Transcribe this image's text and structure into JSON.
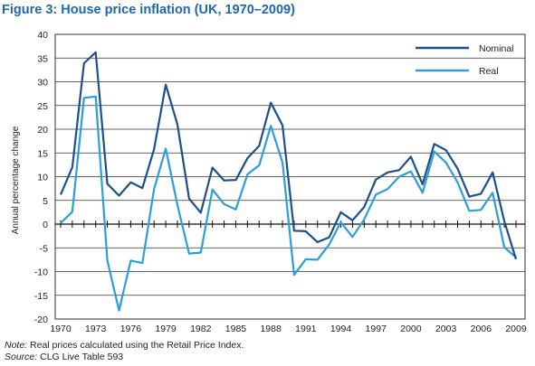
{
  "chart_data": {
    "type": "line",
    "title": "Figure 3: House price inflation (UK, 1970–2009)",
    "ylabel": "Annual percentage change",
    "xlabel": "",
    "ylim": [
      -20,
      40
    ],
    "yticks": [
      40,
      35,
      30,
      25,
      20,
      15,
      10,
      5,
      0,
      -5,
      -10,
      -15,
      -20
    ],
    "xlim": [
      1970,
      2009
    ],
    "xtick_labels": [
      "1970",
      "1973",
      "1976",
      "1979",
      "1982",
      "1985",
      "1988",
      "1991",
      "1994",
      "1997",
      "2000",
      "2003",
      "2006",
      "2009"
    ],
    "grid": "horizontal",
    "legend_position": "top-right",
    "x": [
      1970,
      1971,
      1972,
      1973,
      1974,
      1975,
      1976,
      1977,
      1978,
      1979,
      1980,
      1981,
      1982,
      1983,
      1984,
      1985,
      1986,
      1987,
      1988,
      1989,
      1990,
      1991,
      1992,
      1993,
      1994,
      1995,
      1996,
      1997,
      1998,
      1999,
      2000,
      2001,
      2002,
      2003,
      2004,
      2005,
      2006,
      2007,
      2008,
      2009
    ],
    "series": [
      {
        "name": "Nominal",
        "color": "#1d4f8c",
        "values": [
          6.2,
          12.0,
          33.9,
          36.2,
          8.5,
          6.0,
          8.8,
          7.6,
          15.8,
          29.4,
          21.0,
          5.4,
          2.4,
          11.9,
          9.2,
          9.3,
          13.9,
          16.5,
          25.6,
          20.8,
          -1.4,
          -1.5,
          -3.8,
          -2.8,
          2.5,
          0.8,
          3.6,
          9.4,
          10.9,
          11.4,
          14.2,
          8.4,
          16.9,
          15.6,
          11.7,
          5.8,
          6.4,
          10.9,
          0.6,
          -7.4
        ]
      },
      {
        "name": "Real",
        "color": "#2b9fd9",
        "values": [
          0.2,
          2.6,
          26.6,
          26.9,
          -7.7,
          -18.2,
          -7.7,
          -8.2,
          7.4,
          15.9,
          4.0,
          -6.2,
          -6.0,
          7.3,
          4.2,
          3.1,
          10.5,
          12.4,
          20.7,
          13.0,
          -10.7,
          -7.4,
          -7.5,
          -4.3,
          0.4,
          -2.7,
          1.0,
          6.2,
          7.4,
          10.0,
          11.1,
          6.6,
          15.3,
          13.0,
          8.8,
          2.8,
          3.0,
          6.6,
          -4.9,
          -7.0
        ]
      }
    ]
  },
  "notes": {
    "note_label": "Note:",
    "note_text": "Real prices calculated using the Retail Price Index.",
    "source_label": "Source:",
    "source_text": "CLG Live Table 593"
  }
}
